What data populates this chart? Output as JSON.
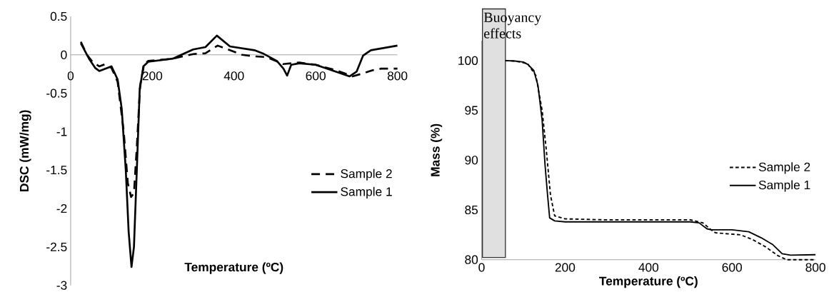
{
  "chart_data": [
    {
      "type": "line",
      "xlabel": "Temperature (ºC)",
      "ylabel": "DSC (mW/mg)",
      "xlim": [
        0,
        800
      ],
      "ylim": [
        -3,
        0.5
      ],
      "xticks": [
        0,
        200,
        400,
        600,
        800
      ],
      "yticks": [
        0.5,
        0,
        -0.5,
        -1,
        -1.5,
        -2,
        -2.5,
        -3
      ],
      "legend": "right",
      "grid": false,
      "series": [
        {
          "name": "Sample 2",
          "color": "#000000",
          "line_style": "dashed",
          "x": [
            25,
            40,
            55,
            70,
            85,
            100,
            115,
            130,
            140,
            148,
            155,
            162,
            170,
            180,
            190,
            250,
            300,
            330,
            360,
            380,
            420,
            450,
            480,
            520,
            560,
            600,
            650,
            690,
            710,
            740,
            760,
            800
          ],
          "values": [
            0.17,
            0.0,
            -0.1,
            -0.15,
            -0.12,
            -0.17,
            -0.35,
            -1.0,
            -1.67,
            -1.85,
            -1.8,
            -1.2,
            -0.4,
            -0.12,
            -0.08,
            -0.05,
            0.01,
            0.02,
            0.12,
            0.08,
            0.0,
            -0.02,
            -0.03,
            -0.12,
            -0.1,
            -0.13,
            -0.2,
            -0.28,
            -0.25,
            -0.2,
            -0.18,
            -0.18
          ]
        },
        {
          "name": "Sample 1",
          "color": "#000000",
          "line_style": "solid",
          "x": [
            25,
            45,
            60,
            70,
            85,
            100,
            115,
            125,
            135,
            142,
            149,
            155,
            162,
            169,
            178,
            190,
            250,
            300,
            330,
            358,
            390,
            450,
            470,
            505,
            521,
            530,
            540,
            560,
            600,
            650,
            683,
            700,
            716,
            735,
            800
          ],
          "values": [
            0.15,
            -0.05,
            -0.17,
            -0.21,
            -0.18,
            -0.15,
            -0.32,
            -0.7,
            -1.5,
            -2.3,
            -2.76,
            -2.5,
            -1.5,
            -0.46,
            -0.15,
            -0.09,
            -0.05,
            0.07,
            0.1,
            0.25,
            0.11,
            0.06,
            0.02,
            -0.08,
            -0.18,
            -0.27,
            -0.13,
            -0.11,
            -0.13,
            -0.22,
            -0.28,
            -0.22,
            -0.01,
            0.06,
            0.12
          ]
        }
      ]
    },
    {
      "type": "line",
      "xlabel": "Temperature (ºC)",
      "ylabel": "Mass (%)",
      "xlim": [
        0,
        800
      ],
      "ylim": [
        80,
        102
      ],
      "xticks": [
        0,
        200,
        400,
        600,
        800
      ],
      "yticks": [
        80,
        85,
        90,
        95,
        100
      ],
      "legend": "right",
      "grid": false,
      "bands": [
        {
          "axis": "x",
          "from": 2,
          "to": 57,
          "label": "Buoyancy effects",
          "color": "#e0e0e0"
        }
      ],
      "series": [
        {
          "name": "Sample 2",
          "color": "#000000",
          "line_style": "dashed",
          "x": [
            57,
            80,
            110,
            130,
            145,
            155,
            165,
            175,
            200,
            300,
            400,
            500,
            530,
            550,
            560,
            620,
            650,
            680,
            710,
            730,
            800
          ],
          "values": [
            100,
            99.95,
            99.7,
            98.5,
            95,
            91,
            86.5,
            84.4,
            84.1,
            84.0,
            84.0,
            84.0,
            83.7,
            83.0,
            82.7,
            82.5,
            82.0,
            81.3,
            80.4,
            80.0,
            80.0
          ]
        },
        {
          "name": "Sample 1",
          "color": "#000000",
          "line_style": "solid",
          "x": [
            57,
            80,
            100,
            111,
            125,
            135,
            145,
            152,
            158,
            163,
            175,
            200,
            300,
            400,
            500,
            521,
            540,
            550,
            600,
            640,
            670,
            698,
            720,
            740,
            800
          ],
          "values": [
            100,
            99.95,
            99.85,
            99.6,
            99.0,
            97.5,
            94.0,
            89.5,
            86.5,
            84.2,
            83.9,
            83.8,
            83.8,
            83.8,
            83.8,
            83.7,
            83.1,
            83.0,
            83.0,
            82.8,
            82.2,
            81.5,
            80.6,
            80.45,
            80.5
          ]
        }
      ]
    }
  ]
}
